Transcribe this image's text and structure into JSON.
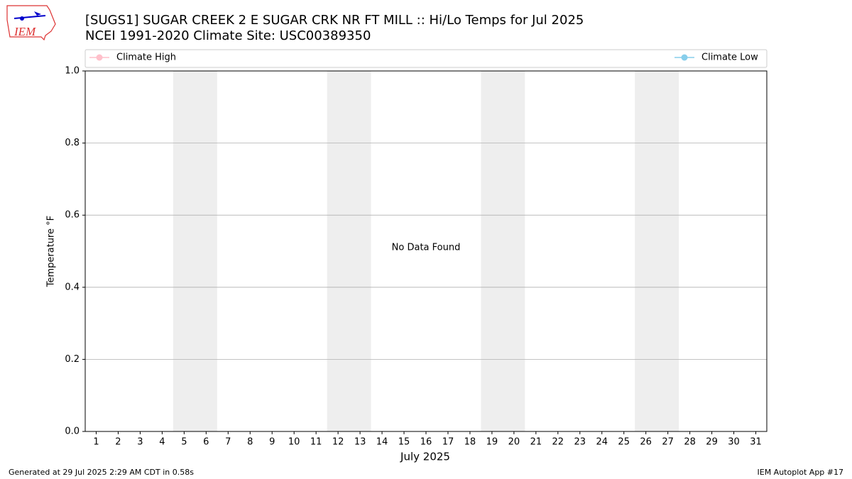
{
  "chart_data": {
    "type": "line",
    "title": "[SUGS1] SUGAR CREEK 2 E SUGAR CRK NR FT MILL :: Hi/Lo Temps for Jul 2025",
    "subtitle": "NCEI 1991-2020 Climate Site: USC00389350",
    "xlabel": "July 2025",
    "ylabel": "Temperature °F",
    "annotation": "No Data Found",
    "x": [
      1,
      2,
      3,
      4,
      5,
      6,
      7,
      8,
      9,
      10,
      11,
      12,
      13,
      14,
      15,
      16,
      17,
      18,
      19,
      20,
      21,
      22,
      23,
      24,
      25,
      26,
      27,
      28,
      29,
      30,
      31
    ],
    "series": [
      {
        "name": "Climate High",
        "color": "pink",
        "values": [
          null,
          null,
          null,
          null,
          null,
          null,
          null,
          null,
          null,
          null,
          null,
          null,
          null,
          null,
          null,
          null,
          null,
          null,
          null,
          null,
          null,
          null,
          null,
          null,
          null,
          null,
          null,
          null,
          null,
          null,
          null
        ]
      },
      {
        "name": "Climate Low",
        "color": "skyblue",
        "values": [
          null,
          null,
          null,
          null,
          null,
          null,
          null,
          null,
          null,
          null,
          null,
          null,
          null,
          null,
          null,
          null,
          null,
          null,
          null,
          null,
          null,
          null,
          null,
          null,
          null,
          null,
          null,
          null,
          null,
          null,
          null
        ]
      }
    ],
    "weekend_days": [
      [
        5,
        6
      ],
      [
        12,
        13
      ],
      [
        19,
        20
      ],
      [
        26,
        27
      ]
    ],
    "weekend_color": "#eeeeee",
    "xlim": [
      0.5,
      31.5
    ],
    "xticks": [
      1,
      2,
      3,
      4,
      5,
      6,
      7,
      8,
      9,
      10,
      11,
      12,
      13,
      14,
      15,
      16,
      17,
      18,
      19,
      20,
      21,
      22,
      23,
      24,
      25,
      26,
      27,
      28,
      29,
      30,
      31
    ],
    "ylim": [
      0,
      1
    ],
    "yticks": [
      {
        "value": 0,
        "label": "0.0"
      },
      {
        "value": 0.2,
        "label": "0.2"
      },
      {
        "value": 0.4,
        "label": "0.4"
      },
      {
        "value": 0.6,
        "label": "0.6"
      },
      {
        "value": 0.8,
        "label": "0.8"
      },
      {
        "value": 1,
        "label": "1.0"
      }
    ],
    "grid": true
  },
  "logo_text": "IEM",
  "footer_left": "Generated at 29 Jul 2025 2:29 AM CDT in 0.58s",
  "footer_right": "IEM Autoplot App #17"
}
